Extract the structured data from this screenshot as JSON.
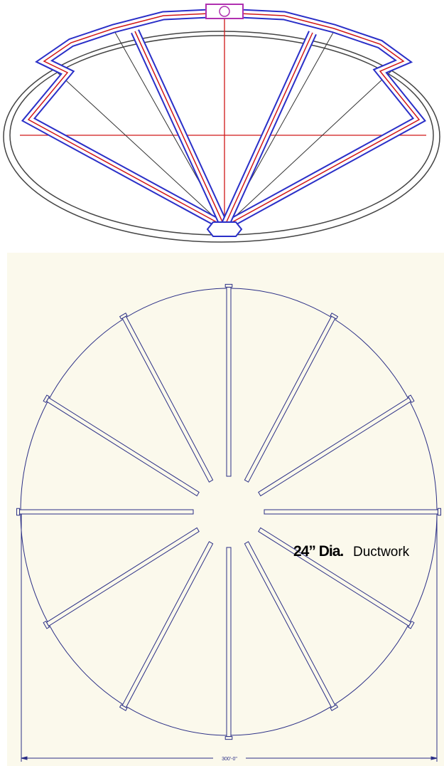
{
  "callout": {
    "size": "24” Dia.",
    "label": "Ductwork"
  },
  "dimension": {
    "label": "300'-0\""
  }
}
